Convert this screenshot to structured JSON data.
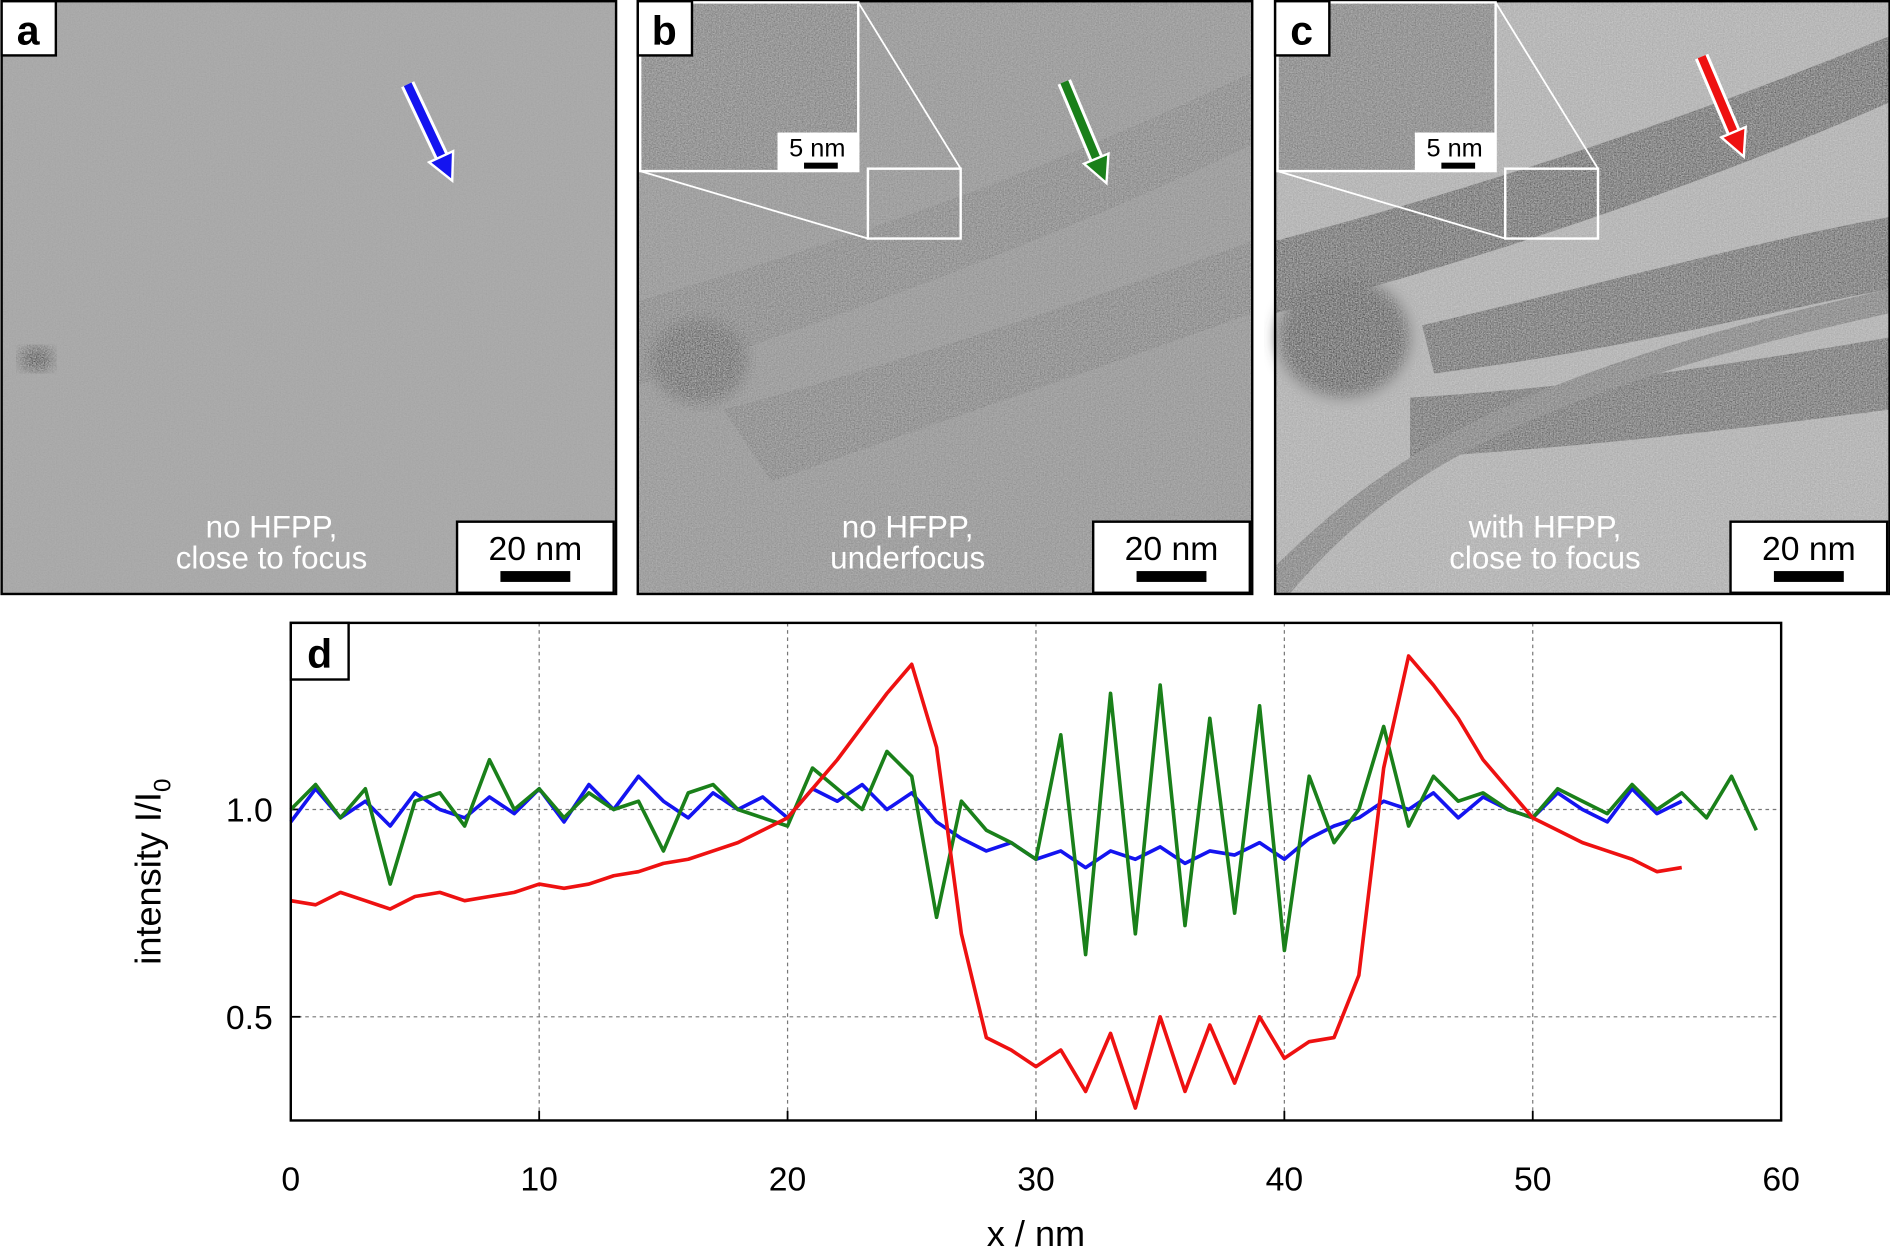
{
  "panels": [
    {
      "label": "a",
      "caption": [
        "no HFPP,",
        "close to focus"
      ],
      "scale_bar": "20 nm"
    },
    {
      "label": "b",
      "caption": [
        "no HFPP,",
        "underfocus"
      ],
      "scale_bar": "20 nm",
      "inset_scale_bar": "5 nm"
    },
    {
      "label": "c",
      "caption": [
        "with HFPP,",
        "close to focus"
      ],
      "scale_bar": "20 nm",
      "inset_scale_bar": "5 nm"
    }
  ],
  "chart_data": {
    "type": "line",
    "panel_label": "d",
    "xlabel": "x / nm",
    "ylabel": {
      "text": "intensity I/I",
      "subscript": "0"
    },
    "x": [
      0,
      1,
      2,
      3,
      4,
      5,
      6,
      7,
      8,
      9,
      10,
      11,
      12,
      13,
      14,
      15,
      16,
      17,
      18,
      19,
      20,
      21,
      22,
      23,
      24,
      25,
      26,
      27,
      28,
      29,
      30,
      31,
      32,
      33,
      34,
      35,
      36,
      37,
      38,
      39,
      40,
      41,
      42,
      43,
      44,
      45,
      46,
      47,
      48,
      49,
      50,
      51,
      52,
      53,
      54,
      55,
      56,
      57,
      58,
      59
    ],
    "series": [
      {
        "color": "#1414f0",
        "values": [
          0.97,
          1.05,
          0.98,
          1.02,
          0.96,
          1.04,
          1.0,
          0.98,
          1.03,
          0.99,
          1.05,
          0.97,
          1.06,
          1.0,
          1.08,
          1.02,
          0.98,
          1.04,
          1.0,
          1.03,
          0.98,
          1.05,
          1.02,
          1.06,
          1.0,
          1.04,
          0.97,
          0.93,
          0.9,
          0.92,
          0.88,
          0.9,
          0.86,
          0.9,
          0.88,
          0.91,
          0.87,
          0.9,
          0.89,
          0.92,
          0.88,
          0.93,
          0.96,
          0.98,
          1.02,
          1.0,
          1.04,
          0.98,
          1.03,
          1.0,
          0.98,
          1.04,
          1.0,
          0.97,
          1.05,
          0.99,
          1.02,
          null,
          null,
          null
        ]
      },
      {
        "color": "#1a801a",
        "values": [
          1.0,
          1.06,
          0.98,
          1.05,
          0.82,
          1.02,
          1.04,
          0.96,
          1.12,
          1.0,
          1.05,
          0.98,
          1.04,
          1.0,
          1.02,
          0.9,
          1.04,
          1.06,
          1.0,
          0.98,
          0.96,
          1.1,
          1.05,
          1.0,
          1.14,
          1.08,
          0.74,
          1.02,
          0.95,
          0.92,
          0.88,
          1.18,
          0.65,
          1.28,
          0.7,
          1.3,
          0.72,
          1.22,
          0.75,
          1.25,
          0.66,
          1.08,
          0.92,
          1.0,
          1.2,
          0.96,
          1.08,
          1.02,
          1.04,
          1.0,
          0.98,
          1.05,
          1.02,
          0.99,
          1.06,
          1.0,
          1.04,
          0.98,
          1.08,
          0.95
        ]
      },
      {
        "color": "#ee1111",
        "values": [
          0.78,
          0.77,
          0.8,
          0.78,
          0.76,
          0.79,
          0.8,
          0.78,
          0.79,
          0.8,
          0.82,
          0.81,
          0.82,
          0.84,
          0.85,
          0.87,
          0.88,
          0.9,
          0.92,
          0.95,
          0.98,
          1.05,
          1.12,
          1.2,
          1.28,
          1.35,
          1.15,
          0.7,
          0.45,
          0.42,
          0.38,
          0.42,
          0.32,
          0.46,
          0.28,
          0.5,
          0.32,
          0.48,
          0.34,
          0.5,
          0.4,
          0.44,
          0.45,
          0.6,
          1.1,
          1.37,
          1.3,
          1.22,
          1.12,
          1.05,
          0.98,
          0.95,
          0.92,
          0.9,
          0.88,
          0.85,
          0.86,
          null,
          null,
          null
        ]
      }
    ],
    "xlim": [
      0,
      60
    ],
    "xticks": [
      0,
      10,
      20,
      30,
      40,
      50,
      60
    ],
    "ylim": [
      0.25,
      1.45
    ],
    "yticks": [
      0.5,
      {
        "value": 1.0,
        "label": "1.0"
      }
    ],
    "grid": true
  }
}
